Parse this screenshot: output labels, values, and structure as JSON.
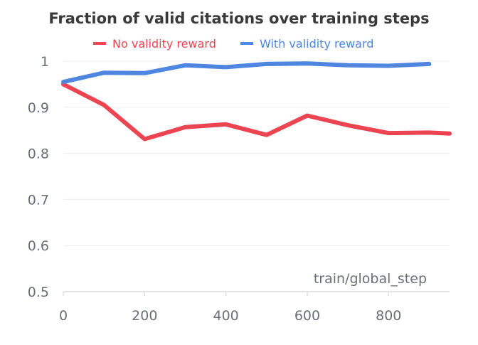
{
  "chart_data": {
    "type": "line",
    "title": "Fraction of valid citations over training steps",
    "xlabel": "train/global_step",
    "ylabel": "",
    "xlim": [
      0,
      950
    ],
    "ylim": [
      0.5,
      1
    ],
    "x_ticks": [
      0,
      200,
      400,
      600,
      800
    ],
    "y_ticks": [
      0.5,
      0.6,
      0.7,
      0.8,
      0.9,
      1
    ],
    "y_tick_labels": [
      "0.5",
      "0.6",
      "0.7",
      "0.8",
      "0.9",
      "1"
    ],
    "legend_position": "top-center",
    "series": [
      {
        "name": "No validity reward",
        "color": "#ec4451",
        "x": [
          0,
          100,
          200,
          300,
          400,
          500,
          600,
          700,
          800,
          900,
          950
        ],
        "values": [
          0.95,
          0.905,
          0.831,
          0.857,
          0.863,
          0.84,
          0.882,
          0.861,
          0.844,
          0.845,
          0.843
        ]
      },
      {
        "name": "With validity reward",
        "color": "#4e86e0",
        "x": [
          0,
          100,
          200,
          300,
          400,
          500,
          600,
          700,
          800,
          900
        ],
        "values": [
          0.955,
          0.975,
          0.974,
          0.991,
          0.987,
          0.994,
          0.995,
          0.991,
          0.99,
          0.994
        ]
      }
    ]
  }
}
